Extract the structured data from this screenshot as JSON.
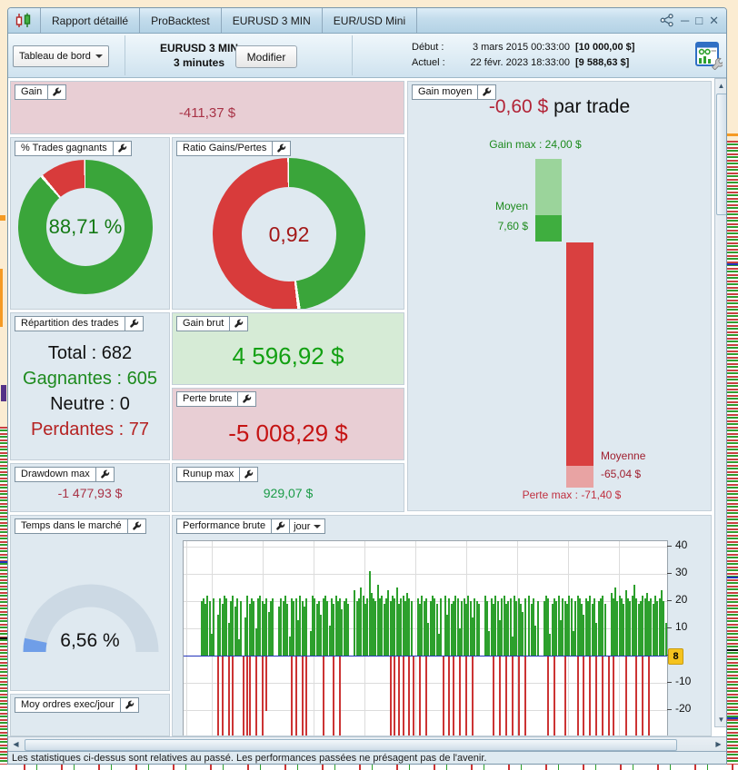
{
  "window": {
    "tabs": [
      "Rapport détaillé",
      "ProBacktest",
      "EURUSD 3 MIN",
      "EUR/USD Mini"
    ],
    "controls": {
      "minimize": "─",
      "maximize": "□",
      "close": "✕"
    }
  },
  "toolbar": {
    "view_selector": "Tableau de bord",
    "instrument": "EURUSD 3 MIN",
    "timeframe": "3 minutes",
    "modify": "Modifier",
    "start_label": "Début :",
    "start_datetime": "3 mars 2015 00:33:00",
    "start_equity": "[10 000,00 $]",
    "current_label": "Actuel :",
    "current_datetime": "22 févr. 2023 18:33:00",
    "current_equity": "[9 588,63 $]"
  },
  "panels": {
    "gain": {
      "title": "Gain",
      "value": "-411,37 $"
    },
    "pct_trades": {
      "title": "% Trades gagnants",
      "center": "88,71 %"
    },
    "ratio": {
      "title": "Ratio Gains/Pertes",
      "center": "0,92"
    },
    "gain_moyen": {
      "title": "Gain moyen",
      "headline_value": "-0,60 $",
      "headline_suffix": " par trade",
      "gain_max": "Gain max : 24,00 $",
      "moyen_label": "Moyen",
      "moyen_value": "7,60 $",
      "moyenne_label": "Moyenne",
      "moyenne_value": "-65,04 $",
      "perte_max": "Perte max : -71,40 $"
    },
    "repartition": {
      "title": "Répartition des trades",
      "rows": [
        {
          "text": "Total : 682"
        },
        {
          "text": "Gagnantes : 605"
        },
        {
          "text": "Neutre : 0"
        },
        {
          "text": "Perdantes : 77"
        }
      ]
    },
    "gain_brut": {
      "title": "Gain brut",
      "value": "4 596,92 $"
    },
    "perte_brute": {
      "title": "Perte brute",
      "value": "-5 008,29 $"
    },
    "drawdown": {
      "title": "Drawdown max",
      "value": "-1 477,93 $"
    },
    "runup": {
      "title": "Runup max",
      "value": "929,07 $"
    },
    "temps_marche": {
      "title": "Temps dans le marché",
      "value": "6,56 %"
    },
    "performance": {
      "title": "Performance brute",
      "period": "jour",
      "axis_badge": "8"
    },
    "moy_ordres": {
      "title": "Moy ordres exec/jour"
    }
  },
  "status_bar": {
    "text": "Les statistiques ci-dessus sont relatives au passé. Les performances passées ne présagent pas de l'avenir."
  },
  "colors": {
    "positive_green": "#12a012",
    "negative_red": "#c51414",
    "dark_red_value": "#a83246",
    "donut_green": "#3aa53a",
    "donut_red": "#d83b3b",
    "gauge_fill": "#6f9ee8",
    "gauge_track": "#ccd9e4",
    "panel_bg": "#dfe9f0",
    "pink_bg": "#e8ced4",
    "green_bg": "#d6ebd6"
  },
  "chart_data": [
    {
      "id": "pct_trades_donut",
      "type": "pie",
      "title": "% Trades gagnants",
      "labels": [
        "Gagnants",
        "Perdants"
      ],
      "values": [
        88.71,
        11.29
      ],
      "colors": [
        "#3aa53a",
        "#d83b3b"
      ],
      "center_text": "88,71 %"
    },
    {
      "id": "ratio_donut",
      "type": "pie",
      "title": "Ratio Gains/Pertes",
      "labels": [
        "Gains",
        "Pertes"
      ],
      "values": [
        47.9,
        52.1
      ],
      "colors": [
        "#3aa53a",
        "#d83b3b"
      ],
      "center_text": "0,92"
    },
    {
      "id": "gain_moyen_bars",
      "type": "bar",
      "title": "Gain moyen par trade",
      "unit": "$",
      "gain_max": 24.0,
      "gain_moyen": 7.6,
      "perte_moyenne": -65.04,
      "perte_max": -71.4,
      "average_per_trade": -0.6,
      "colors": {
        "gain_light": "#9bd49b",
        "gain_dark": "#3fae3f",
        "perte_dark": "#d94040",
        "perte_light": "#e8a3a3"
      }
    },
    {
      "id": "temps_marche_gauge",
      "type": "gauge",
      "title": "Temps dans le marché",
      "value": 6.56,
      "min": 0,
      "max": 100,
      "unit": "%"
    },
    {
      "id": "performance_bars",
      "type": "bar",
      "title": "Performance brute par jour",
      "unit": "$",
      "ylim": [
        -30,
        41
      ],
      "yticks": [
        40,
        30,
        20,
        10,
        0,
        -10,
        -20
      ],
      "current_value": 8,
      "grid": true,
      "zero_line_color": "#2233bb",
      "bar_colors": {
        "positive": "#2da02d",
        "negative": "#cc3434"
      },
      "slot_count": 230,
      "green": [
        0,
        0,
        0,
        0,
        0,
        0,
        0,
        0,
        20,
        21,
        19,
        22,
        20,
        8,
        21,
        0,
        15,
        21,
        19,
        22,
        21,
        12,
        20,
        22,
        18,
        21,
        6,
        20,
        0,
        14,
        22,
        19,
        21,
        20,
        10,
        21,
        22,
        20,
        19,
        21,
        16,
        20,
        21,
        0,
        0,
        18,
        21,
        20,
        22,
        19,
        7,
        21,
        20,
        21,
        13,
        22,
        20,
        18,
        21,
        0,
        9,
        22,
        21,
        19,
        20,
        15,
        21,
        22,
        20,
        11,
        21,
        19,
        22,
        20,
        21,
        17,
        20,
        21,
        19,
        0,
        0,
        24,
        20,
        21,
        25,
        22,
        19,
        21,
        31,
        23,
        21,
        20,
        26,
        21,
        22,
        19,
        21,
        24,
        20,
        22,
        21,
        25,
        19,
        21,
        22,
        20,
        23,
        21,
        20,
        0,
        0,
        21,
        19,
        22,
        20,
        21,
        12,
        20,
        22,
        21,
        19,
        8,
        21,
        0,
        22,
        15,
        21,
        19,
        20,
        22,
        21,
        10,
        20,
        21,
        19,
        22,
        20,
        14,
        21,
        20,
        19,
        0,
        0,
        22,
        20,
        9,
        21,
        19,
        22,
        20,
        13,
        21,
        22,
        19,
        20,
        21,
        7,
        22,
        20,
        21,
        19,
        16,
        21,
        0,
        22,
        19,
        21,
        11,
        20,
        0,
        0,
        20,
        22,
        21,
        8,
        19,
        21,
        20,
        22,
        13,
        21,
        20,
        19,
        22,
        21,
        9,
        20,
        22,
        21,
        19,
        15,
        21,
        20,
        22,
        19,
        21,
        12,
        20,
        21,
        22,
        19,
        0,
        0,
        23,
        21,
        25,
        20,
        22,
        21,
        19,
        24,
        21,
        20,
        22,
        26,
        21,
        19,
        20,
        22,
        21,
        23,
        20,
        21,
        19,
        22,
        20,
        21,
        24,
        20,
        12
      ],
      "red_bars": [
        [
          16,
          35
        ],
        [
          18,
          35
        ],
        [
          21,
          35
        ],
        [
          23,
          35
        ],
        [
          28,
          35
        ],
        [
          30,
          35
        ],
        [
          31,
          35
        ],
        [
          34,
          35
        ],
        [
          37,
          35
        ],
        [
          39,
          20
        ],
        [
          51,
          35
        ],
        [
          53,
          35
        ],
        [
          56,
          35
        ],
        [
          58,
          35
        ],
        [
          66,
          35
        ],
        [
          71,
          35
        ],
        [
          74,
          35
        ],
        [
          98,
          35
        ],
        [
          100,
          35
        ],
        [
          102,
          35
        ],
        [
          104,
          35
        ],
        [
          107,
          35
        ],
        [
          109,
          35
        ],
        [
          112,
          35
        ],
        [
          115,
          35
        ],
        [
          123,
          35
        ],
        [
          126,
          35
        ],
        [
          128,
          35
        ],
        [
          131,
          35
        ],
        [
          134,
          35
        ],
        [
          137,
          35
        ],
        [
          147,
          35
        ],
        [
          150,
          35
        ],
        [
          153,
          35
        ],
        [
          156,
          35
        ],
        [
          159,
          35
        ],
        [
          162,
          35
        ],
        [
          173,
          35
        ],
        [
          176,
          35
        ],
        [
          181,
          35
        ],
        [
          187,
          35
        ],
        [
          190,
          35
        ],
        [
          193,
          35
        ],
        [
          196,
          35
        ],
        [
          199,
          35
        ],
        [
          202,
          35
        ],
        [
          204,
          35
        ],
        [
          210,
          35
        ],
        [
          215,
          35
        ],
        [
          218,
          35
        ],
        [
          221,
          35
        ]
      ]
    }
  ]
}
